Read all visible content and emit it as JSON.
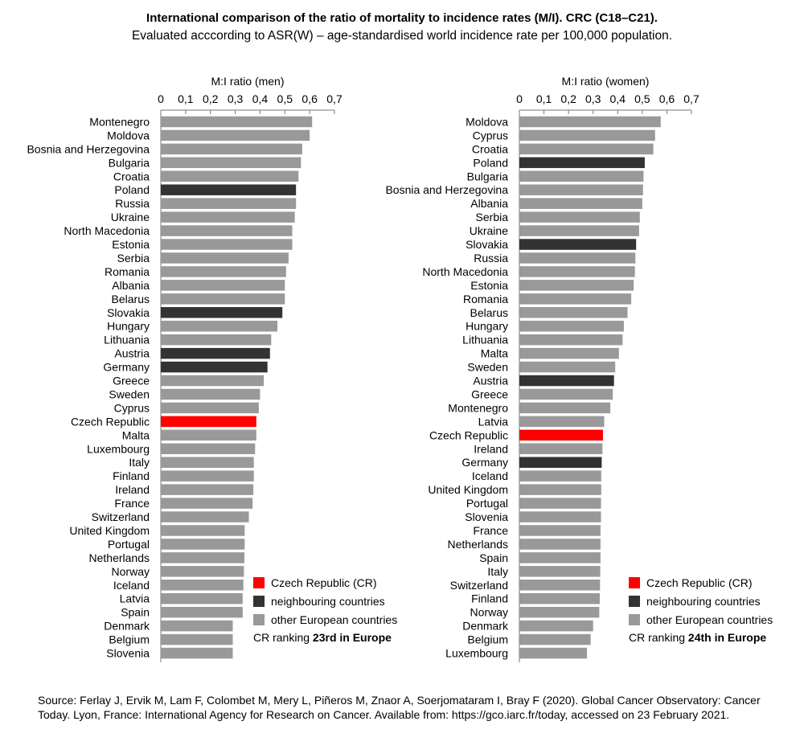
{
  "title": "International comparison of the ratio of mortality to incidence rates (M/I). CRC (C18–C21).",
  "subtitle": "Evaluated acccording to ASR(W) – age-standardised world incidence rate per 100,000 population.",
  "colors": {
    "cr": "#ff0000",
    "neighbour": "#333333",
    "other": "#999999"
  },
  "legend": {
    "cr_label": "Czech Republic (CR)",
    "neighbour_label": "neighbouring countries",
    "other_label": "other European countries"
  },
  "source": "Source: Ferlay J, Ervik M, Lam F, Colombet M, Mery L, Piñeros M, Znaor A, Soerjomataram I, Bray F (2020). Global Cancer Observatory: Cancer Today. Lyon, France: International Agency for Research on Cancer. Available from: https://gco.iarc.fr/today, accessed on 23 February 2021.",
  "chart_data": [
    {
      "type": "bar",
      "orientation": "horizontal",
      "xlabel": "M:I ratio (men)",
      "xlim": [
        0,
        0.7
      ],
      "ticks": [
        "0",
        "0,1",
        "0,2",
        "0,3",
        "0,4",
        "0,5",
        "0,6",
        "0,7"
      ],
      "ranking_prefix": "CR ranking ",
      "ranking_bold": "23rd in Europe",
      "categories": [
        "Montenegro",
        "Moldova",
        "Bosnia and Herzegovina",
        "Bulgaria",
        "Croatia",
        "Poland",
        "Russia",
        "Ukraine",
        "North Macedonia",
        "Estonia",
        "Serbia",
        "Romania",
        "Albania",
        "Belarus",
        "Slovakia",
        "Hungary",
        "Lithuania",
        "Austria",
        "Germany",
        "Greece",
        "Sweden",
        "Cyprus",
        "Czech Republic",
        "Malta",
        "Luxembourg",
        "Italy",
        "Finland",
        "Ireland",
        "France",
        "Switzerland",
        "United Kingdom",
        "Portugal",
        "Netherlands",
        "Norway",
        "Iceland",
        "Latvia",
        "Spain",
        "Denmark",
        "Belgium",
        "Slovenia"
      ],
      "values": [
        0.61,
        0.6,
        0.57,
        0.565,
        0.555,
        0.545,
        0.545,
        0.54,
        0.53,
        0.53,
        0.515,
        0.505,
        0.5,
        0.5,
        0.49,
        0.47,
        0.445,
        0.44,
        0.43,
        0.415,
        0.4,
        0.395,
        0.385,
        0.385,
        0.38,
        0.375,
        0.375,
        0.373,
        0.37,
        0.355,
        0.338,
        0.338,
        0.337,
        0.335,
        0.333,
        0.33,
        0.33,
        0.29,
        0.29,
        0.29
      ],
      "groups": [
        "other",
        "other",
        "other",
        "other",
        "other",
        "neighbour",
        "other",
        "other",
        "other",
        "other",
        "other",
        "other",
        "other",
        "other",
        "neighbour",
        "other",
        "other",
        "neighbour",
        "neighbour",
        "other",
        "other",
        "other",
        "cr",
        "other",
        "other",
        "other",
        "other",
        "other",
        "other",
        "other",
        "other",
        "other",
        "other",
        "other",
        "other",
        "other",
        "other",
        "other",
        "other",
        "other"
      ]
    },
    {
      "type": "bar",
      "orientation": "horizontal",
      "xlabel": "M:I ratio (women)",
      "xlim": [
        0,
        0.7
      ],
      "ticks": [
        "0",
        "0,1",
        "0,2",
        "0,3",
        "0,4",
        "0,5",
        "0,6",
        "0,7"
      ],
      "ranking_prefix": "CR ranking ",
      "ranking_bold": "24th in Europe",
      "categories": [
        "Moldova",
        "Cyprus",
        "Croatia",
        "Poland",
        "Bulgaria",
        "Bosnia and Herzegovina",
        "Albania",
        "Serbia",
        "Ukraine",
        "Slovakia",
        "Russia",
        "North Macedonia",
        "Estonia",
        "Romania",
        "Belarus",
        "Hungary",
        "Lithuania",
        "Malta",
        "Sweden",
        "Austria",
        "Greece",
        "Montenegro",
        "Latvia",
        "Czech Republic",
        "Ireland",
        "Germany",
        "Iceland",
        "United Kingdom",
        "Portugal",
        "Slovenia",
        "France",
        "Netherlands",
        "Spain",
        "Italy",
        "Switzerland",
        "Finland",
        "Norway",
        "Denmark",
        "Belgium",
        "Luxembourg"
      ],
      "values": [
        0.575,
        0.552,
        0.545,
        0.51,
        0.505,
        0.503,
        0.5,
        0.49,
        0.487,
        0.475,
        0.472,
        0.47,
        0.465,
        0.455,
        0.44,
        0.425,
        0.42,
        0.405,
        0.39,
        0.385,
        0.38,
        0.37,
        0.345,
        0.34,
        0.338,
        0.335,
        0.333,
        0.333,
        0.332,
        0.332,
        0.33,
        0.33,
        0.33,
        0.329,
        0.328,
        0.327,
        0.325,
        0.3,
        0.29,
        0.275
      ],
      "groups": [
        "other",
        "other",
        "other",
        "neighbour",
        "other",
        "other",
        "other",
        "other",
        "other",
        "neighbour",
        "other",
        "other",
        "other",
        "other",
        "other",
        "other",
        "other",
        "other",
        "other",
        "neighbour",
        "other",
        "other",
        "other",
        "cr",
        "other",
        "neighbour",
        "other",
        "other",
        "other",
        "other",
        "other",
        "other",
        "other",
        "other",
        "other",
        "other",
        "other",
        "other",
        "other",
        "other"
      ]
    }
  ]
}
